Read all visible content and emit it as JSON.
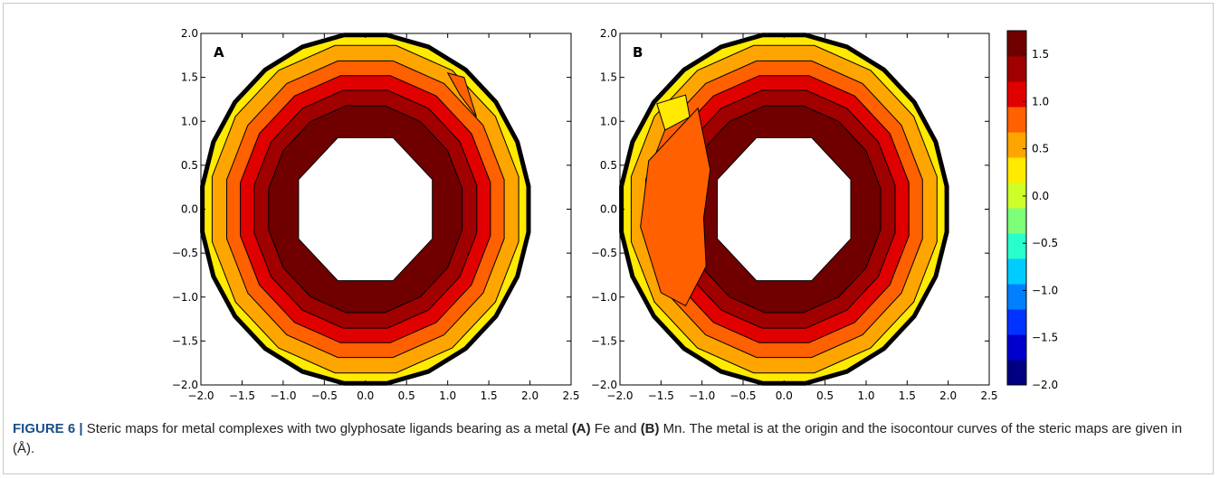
{
  "chart_data": [
    {
      "type": "heatmap",
      "panel_label": "A",
      "x_ticks": [
        "-2.0",
        "-1.5",
        "-1.0",
        "-0.5",
        "0.0",
        "0.5",
        "1.0",
        "1.5",
        "2.0",
        "2.5"
      ],
      "y_ticks": [
        "2.0",
        "1.5",
        "1.0",
        "0.5",
        "0.0",
        "-0.5",
        "-1.0",
        "-1.5",
        "-2.0"
      ],
      "xlim": [
        -2.0,
        2.5
      ],
      "ylim": [
        -2.0,
        2.0
      ],
      "rings": [
        {
          "radius": 2.0,
          "level": 0.4
        },
        {
          "radius": 1.9,
          "level": 0.65
        },
        {
          "radius": 1.72,
          "level": 0.9
        },
        {
          "radius": 1.55,
          "level": 1.1
        },
        {
          "radius": 1.38,
          "level": 1.3
        },
        {
          "radius": 1.2,
          "level": 1.55
        },
        {
          "radius": 0.88,
          "level": null
        }
      ]
    },
    {
      "type": "heatmap",
      "panel_label": "B",
      "x_ticks": [
        "-2.0",
        "-1.5",
        "-1.0",
        "-0.5",
        "0.0",
        "0.5",
        "1.0",
        "1.5",
        "2.0",
        "2.5"
      ],
      "y_ticks": [
        "2.0",
        "1.5",
        "1.0",
        "0.5",
        "0.0",
        "-0.5",
        "-1.0",
        "-1.5",
        "-2.0"
      ],
      "xlim": [
        -2.0,
        2.5
      ],
      "ylim": [
        -2.0,
        2.0
      ],
      "rings": [
        {
          "radius": 2.0,
          "level": 0.4
        },
        {
          "radius": 1.9,
          "level": 0.65
        },
        {
          "radius": 1.72,
          "level": 0.9
        },
        {
          "radius": 1.55,
          "level": 1.1
        },
        {
          "radius": 1.38,
          "level": 1.3
        },
        {
          "radius": 1.2,
          "level": 1.55
        },
        {
          "radius": 0.88,
          "level": null
        }
      ]
    }
  ],
  "colorbar": {
    "ticks": [
      "1.5",
      "1.0",
      "0.5",
      "0.0",
      "−0.5",
      "−1.0",
      "−1.5",
      "−2.0"
    ],
    "range": [
      -2.0,
      1.75
    ],
    "colors": [
      "#000080",
      "#0000cd",
      "#0033ff",
      "#0080ff",
      "#00ccff",
      "#29ffce",
      "#7dff7a",
      "#cdff29",
      "#ffea00",
      "#ffa500",
      "#ff6000",
      "#e00000",
      "#a00000",
      "#700000"
    ]
  },
  "caption": {
    "lead": "FIGURE 6 |",
    "part1": " Steric maps for metal complexes with two glyphosate ligands bearing as a metal ",
    "label_a": "(A)",
    "part2": " Fe and ",
    "label_b": "(B)",
    "part3": " Mn. The metal is at the origin and the isocontour curves of the steric maps are given in (Å)."
  }
}
